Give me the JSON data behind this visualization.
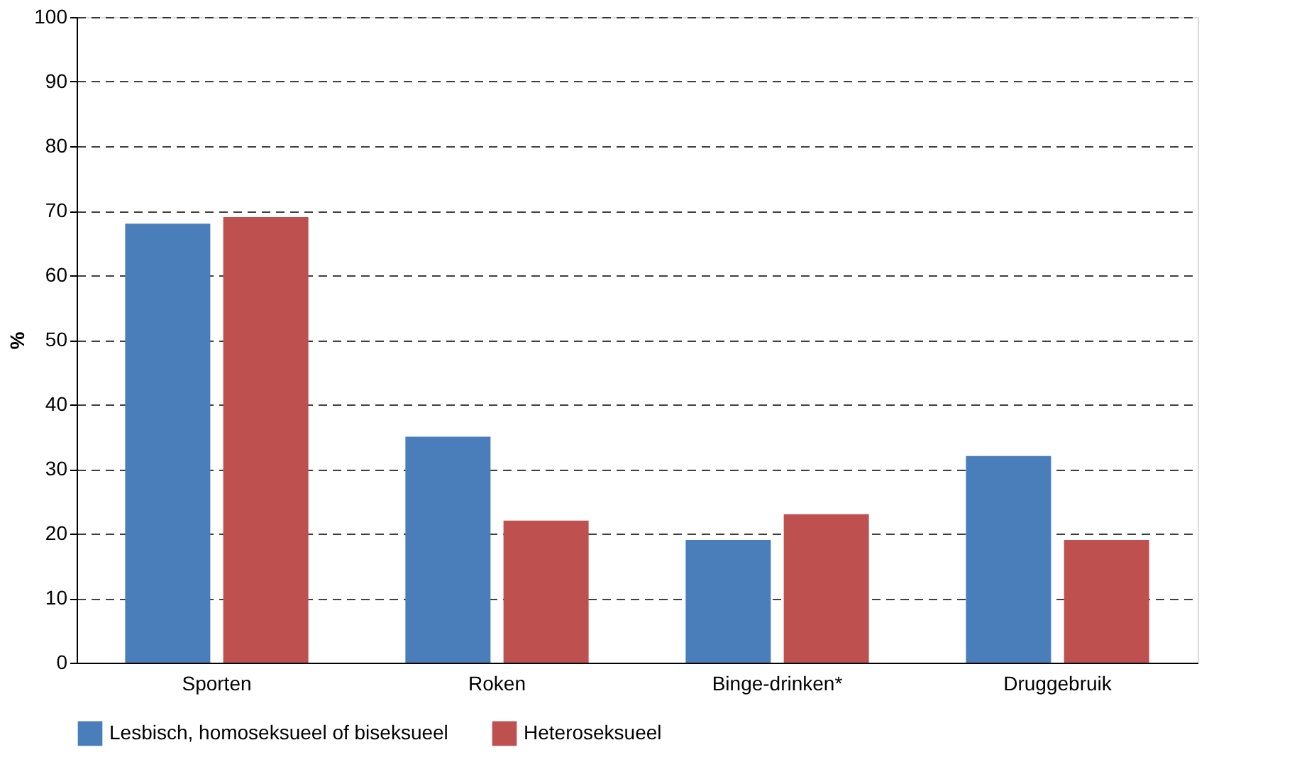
{
  "chart_data": {
    "type": "bar",
    "ylabel": "%",
    "categories": [
      "Sporten",
      "Roken",
      "Binge-drinken*",
      "Druggebruik"
    ],
    "series": [
      {
        "name": "Lesbisch, homoseksueel of biseksueel",
        "color": "#4a7ebb",
        "values": [
          68,
          35,
          19,
          32
        ]
      },
      {
        "name": "Heteroseksueel",
        "color": "#be5150",
        "values": [
          69,
          22,
          23,
          19
        ]
      }
    ],
    "ylim": [
      0,
      100
    ],
    "yticks": [
      0,
      10,
      20,
      30,
      40,
      50,
      60,
      70,
      80,
      90,
      100
    ],
    "grid": "y",
    "legend": "bottom"
  }
}
